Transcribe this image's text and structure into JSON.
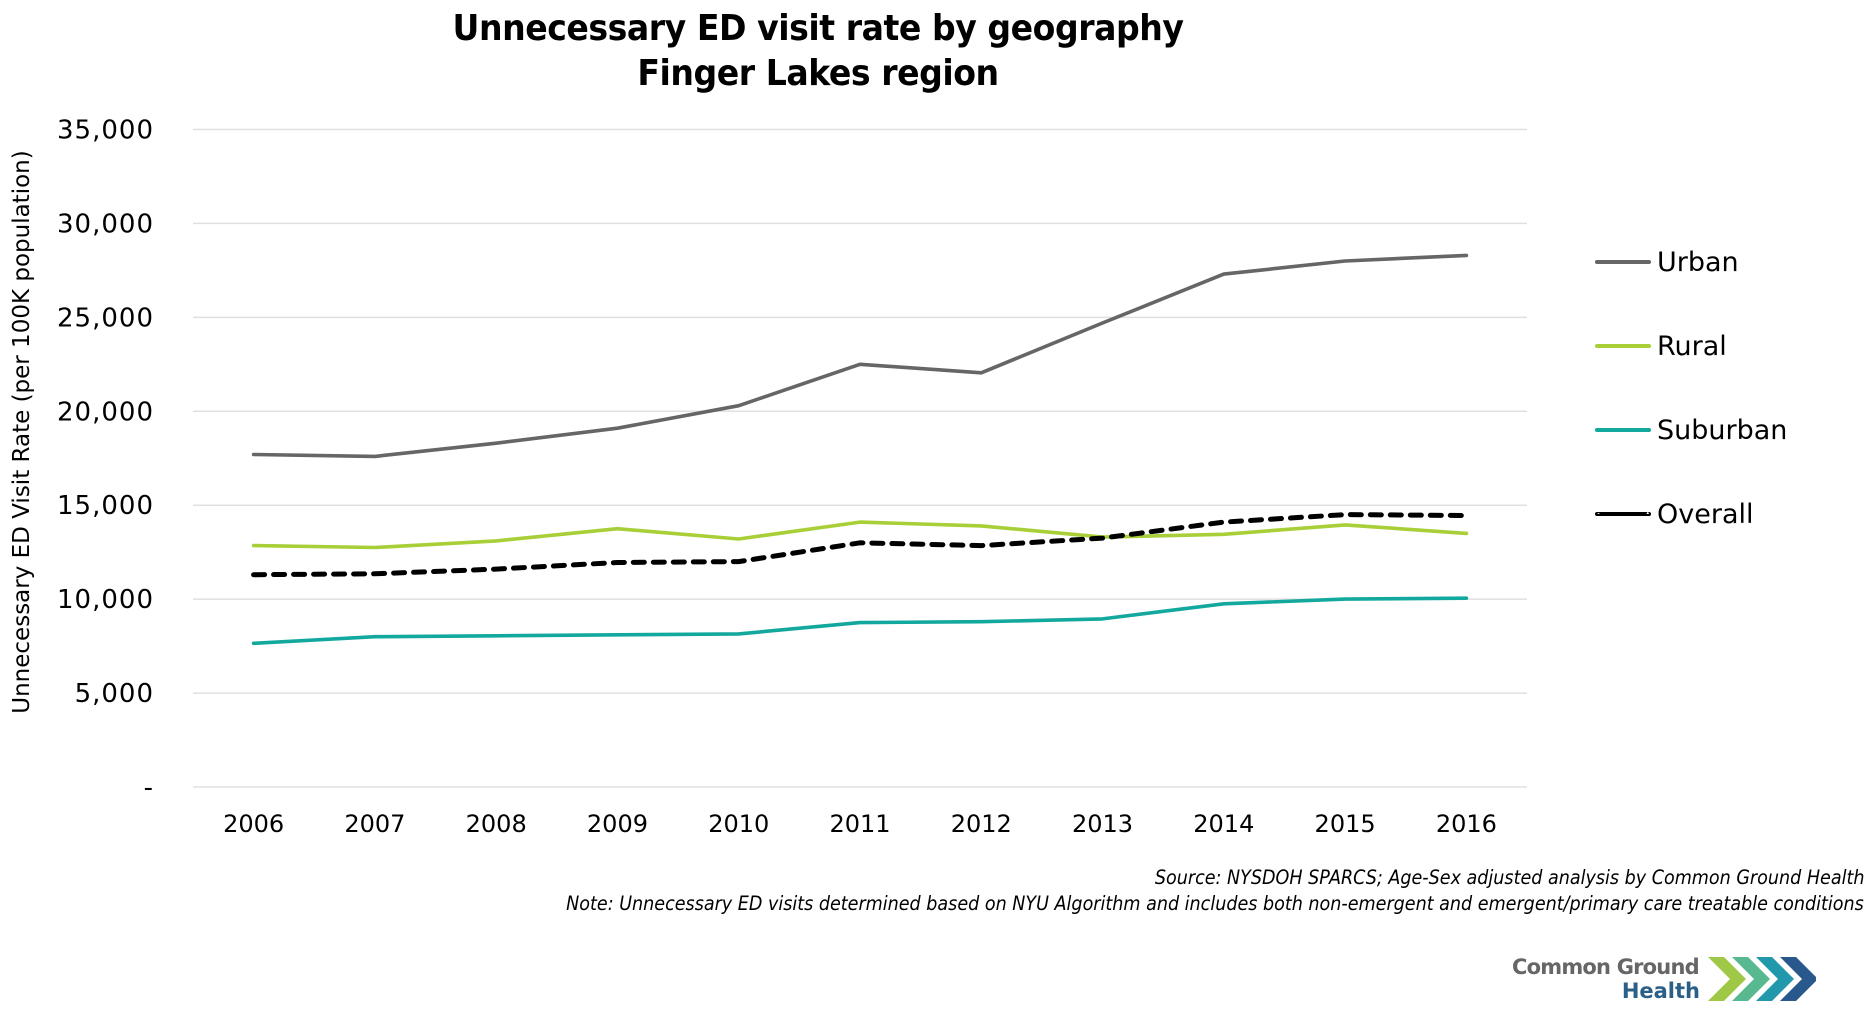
{
  "chart_data": {
    "type": "line",
    "title": "Unnecessary ED visit rate by geography",
    "subtitle": "Finger Lakes region",
    "xlabel": "",
    "ylabel": "Unnecessary ED Visit Rate (per 100K population)",
    "categories": [
      "2006",
      "2007",
      "2008",
      "2009",
      "2010",
      "2011",
      "2012",
      "2013",
      "2014",
      "2015",
      "2016"
    ],
    "ylim": [
      0,
      35000
    ],
    "yticks": [
      0,
      5000,
      10000,
      15000,
      20000,
      25000,
      30000,
      35000
    ],
    "ytick_labels": [
      "-",
      "5,000",
      "10,000",
      "15,000",
      "20,000",
      "25,000",
      "30,000",
      "35,000"
    ],
    "grid": true,
    "legend_position": "right",
    "series": [
      {
        "name": "Urban",
        "color": "#666666",
        "dashed": false,
        "values": [
          17700,
          17600,
          18300,
          19100,
          20300,
          22500,
          22050,
          24700,
          27300,
          28000,
          28300
        ]
      },
      {
        "name": "Rural",
        "color": "#a8cf38",
        "dashed": false,
        "values": [
          12850,
          12750,
          13100,
          13750,
          13200,
          14100,
          13900,
          13300,
          13450,
          13950,
          13500
        ]
      },
      {
        "name": "Suburban",
        "color": "#13a89e",
        "dashed": false,
        "values": [
          7650,
          8000,
          8050,
          8100,
          8150,
          8750,
          8800,
          8950,
          9750,
          10000,
          10050
        ]
      },
      {
        "name": "Overall",
        "color": "#000000",
        "dashed": true,
        "values": [
          11300,
          11350,
          11600,
          11950,
          12000,
          13000,
          12850,
          13250,
          14100,
          14500,
          14450
        ]
      }
    ]
  },
  "footer": {
    "source": "Source: NYSDOH SPARCS; Age-Sex adjusted analysis by Common Ground Health",
    "note": "Note: Unnecessary ED visits determined based on NYU Algorithm and includes both non-emergent and emergent/primary care treatable conditions"
  },
  "logo": {
    "line1": "Common Ground",
    "line2": "Health",
    "colors": [
      "#9bc53d",
      "#5db56a",
      "#13a3a5",
      "#1e6fa8",
      "#1d4f86"
    ]
  }
}
